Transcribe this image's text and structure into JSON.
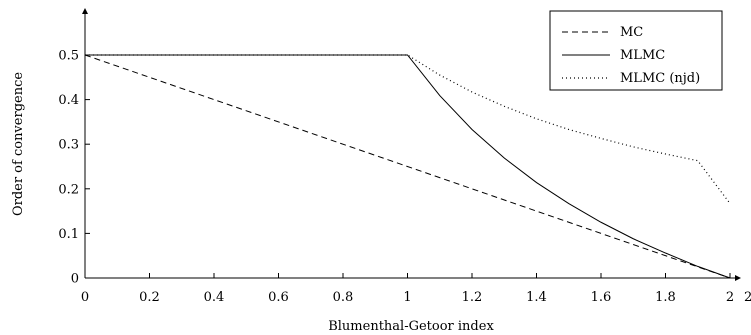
{
  "chart_data": {
    "type": "line",
    "title": "",
    "xlabel": "Blumenthal-Getoor index",
    "ylabel": "Order of convergence",
    "xlim": [
      0,
      2.1
    ],
    "ylim": [
      0,
      0.55
    ],
    "x_ticks": [
      0,
      0.2,
      0.4,
      0.6,
      0.8,
      1,
      1.2,
      1.4,
      1.6,
      1.8,
      2
    ],
    "x_tick_labels": [
      "0",
      "0.2",
      "0.4",
      "0.6",
      "0.8",
      "1",
      "1.2",
      "1.4",
      "1.6",
      "1.8",
      "2"
    ],
    "x_extra_label": "2",
    "y_ticks": [
      0,
      0.1,
      0.2,
      0.3,
      0.4,
      0.5
    ],
    "y_tick_labels": [
      "0",
      "0.1",
      "0.2",
      "0.3",
      "0.4",
      "0.5"
    ],
    "legend_position": "top-right",
    "grid": false,
    "series": [
      {
        "name": "MC",
        "style": "dashed",
        "x": [
          0,
          2
        ],
        "y": [
          0.5,
          0
        ]
      },
      {
        "name": "MLMC",
        "style": "solid",
        "x": [
          0,
          1,
          1.1,
          1.2,
          1.3,
          1.4,
          1.5,
          1.6,
          1.7,
          1.8,
          1.9,
          2
        ],
        "y": [
          0.5,
          0.5,
          0.409,
          0.333,
          0.269,
          0.214,
          0.167,
          0.125,
          0.088,
          0.056,
          0.026,
          0
        ]
      },
      {
        "name": "MLMC (njd)",
        "style": "dotted",
        "x": [
          0,
          1,
          1.1,
          1.2,
          1.3,
          1.4,
          1.5,
          1.6,
          1.7,
          1.8,
          1.9,
          2
        ],
        "y": [
          0.5,
          0.5,
          0.455,
          0.417,
          0.385,
          0.357,
          0.333,
          0.313,
          0.294,
          0.278,
          0.263,
          0.167
        ]
      }
    ]
  }
}
